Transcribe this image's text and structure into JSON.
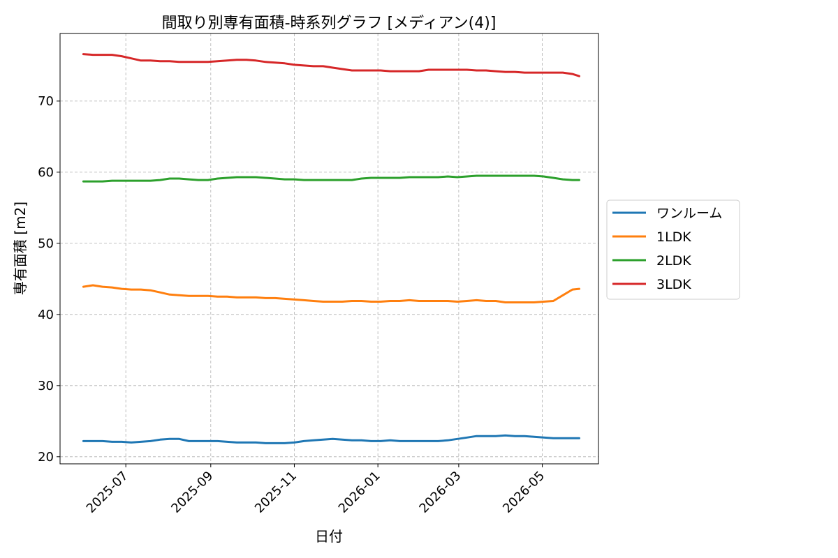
{
  "chart_data": {
    "type": "line",
    "title": "間取り別専有面積-時系列グラフ [メディアン(4)]",
    "xlabel": "日付",
    "ylabel": "専有面積 [m2]",
    "ylim": [
      19,
      79.5
    ],
    "xlim": [
      "2025-05-14",
      "2026-06-11"
    ],
    "grid": true,
    "legend_position": "outside-right",
    "y_ticks": [
      20,
      30,
      40,
      50,
      60,
      70
    ],
    "x_ticks": [
      "2025-07",
      "2025-09",
      "2025-11",
      "2026-01",
      "2026-03",
      "2026-05"
    ],
    "x": [
      "2025-05-31",
      "2025-06-07",
      "2025-06-14",
      "2025-06-21",
      "2025-06-28",
      "2025-07-05",
      "2025-07-12",
      "2025-07-19",
      "2025-07-26",
      "2025-08-02",
      "2025-08-09",
      "2025-08-16",
      "2025-08-23",
      "2025-08-30",
      "2025-09-06",
      "2025-09-13",
      "2025-09-20",
      "2025-09-27",
      "2025-10-04",
      "2025-10-11",
      "2025-10-18",
      "2025-10-25",
      "2025-11-01",
      "2025-11-08",
      "2025-11-15",
      "2025-11-22",
      "2025-11-29",
      "2025-12-06",
      "2025-12-13",
      "2025-12-20",
      "2025-12-27",
      "2026-01-03",
      "2026-01-10",
      "2026-01-17",
      "2026-01-24",
      "2026-01-31",
      "2026-02-07",
      "2026-02-14",
      "2026-02-21",
      "2026-02-28",
      "2026-03-07",
      "2026-03-14",
      "2026-03-21",
      "2026-03-28",
      "2026-04-04",
      "2026-04-11",
      "2026-04-18",
      "2026-04-25",
      "2026-05-02",
      "2026-05-09",
      "2026-05-16",
      "2026-05-23",
      "2026-05-28"
    ],
    "series": [
      {
        "name": "ワンルーム",
        "color": "#1f77b4",
        "values": [
          22.2,
          22.2,
          22.2,
          22.1,
          22.1,
          22.0,
          22.1,
          22.2,
          22.4,
          22.5,
          22.5,
          22.2,
          22.2,
          22.2,
          22.2,
          22.1,
          22.0,
          22.0,
          22.0,
          21.9,
          21.9,
          21.9,
          22.0,
          22.2,
          22.3,
          22.4,
          22.5,
          22.4,
          22.3,
          22.3,
          22.2,
          22.2,
          22.3,
          22.2,
          22.2,
          22.2,
          22.2,
          22.2,
          22.3,
          22.5,
          22.7,
          22.9,
          22.9,
          22.9,
          23.0,
          22.9,
          22.9,
          22.8,
          22.7,
          22.6,
          22.6,
          22.6,
          22.6
        ]
      },
      {
        "name": "1LDK",
        "color": "#ff7f0e",
        "values": [
          43.9,
          44.1,
          43.9,
          43.8,
          43.6,
          43.5,
          43.5,
          43.4,
          43.1,
          42.8,
          42.7,
          42.6,
          42.6,
          42.6,
          42.5,
          42.5,
          42.4,
          42.4,
          42.4,
          42.3,
          42.3,
          42.2,
          42.1,
          42.0,
          41.9,
          41.8,
          41.8,
          41.8,
          41.9,
          41.9,
          41.8,
          41.8,
          41.9,
          41.9,
          42.0,
          41.9,
          41.9,
          41.9,
          41.9,
          41.8,
          41.9,
          42.0,
          41.9,
          41.9,
          41.7,
          41.7,
          41.7,
          41.7,
          41.8,
          41.9,
          42.7,
          43.5,
          43.6
        ]
      },
      {
        "name": "2LDK",
        "color": "#2ca02c",
        "values": [
          58.7,
          58.7,
          58.7,
          58.8,
          58.8,
          58.8,
          58.8,
          58.8,
          58.9,
          59.1,
          59.1,
          59.0,
          58.9,
          58.9,
          59.1,
          59.2,
          59.3,
          59.3,
          59.3,
          59.2,
          59.1,
          59.0,
          59.0,
          58.9,
          58.9,
          58.9,
          58.9,
          58.9,
          58.9,
          59.1,
          59.2,
          59.2,
          59.2,
          59.2,
          59.3,
          59.3,
          59.3,
          59.3,
          59.4,
          59.3,
          59.4,
          59.5,
          59.5,
          59.5,
          59.5,
          59.5,
          59.5,
          59.5,
          59.4,
          59.2,
          59.0,
          58.9,
          58.9
        ]
      },
      {
        "name": "3LDK",
        "color": "#d62728",
        "values": [
          76.6,
          76.5,
          76.5,
          76.5,
          76.3,
          76.0,
          75.7,
          75.7,
          75.6,
          75.6,
          75.5,
          75.5,
          75.5,
          75.5,
          75.6,
          75.7,
          75.8,
          75.8,
          75.7,
          75.5,
          75.4,
          75.3,
          75.1,
          75.0,
          74.9,
          74.9,
          74.7,
          74.5,
          74.3,
          74.3,
          74.3,
          74.3,
          74.2,
          74.2,
          74.2,
          74.2,
          74.4,
          74.4,
          74.4,
          74.4,
          74.4,
          74.3,
          74.3,
          74.2,
          74.1,
          74.1,
          74.0,
          74.0,
          74.0,
          74.0,
          74.0,
          73.8,
          73.5
        ]
      }
    ]
  }
}
